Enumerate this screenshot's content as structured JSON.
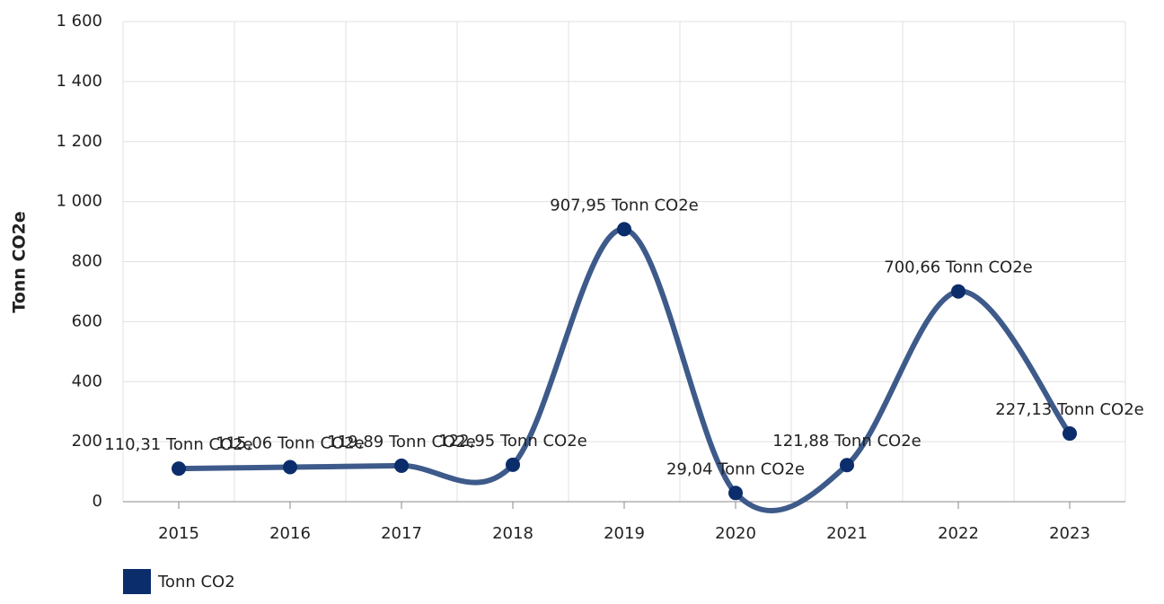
{
  "chart_data": {
    "type": "line",
    "y_label": "Tonn CO2e",
    "categories": [
      "2015",
      "2016",
      "2017",
      "2018",
      "2019",
      "2020",
      "2021",
      "2022",
      "2023"
    ],
    "series": [
      {
        "name": "Tonn CO2",
        "color": "#0b2d6b",
        "line_color": "#3d5a8a",
        "values": [
          110.31,
          115.06,
          119.89,
          122.95,
          907.95,
          29.04,
          121.88,
          700.66,
          227.13
        ],
        "value_labels": [
          "110,31 Tonn CO2e",
          "115,06 Tonn CO2e",
          "119,89 Tonn CO2e",
          "122,95 Tonn CO2e",
          "907,95 Tonn CO2e",
          "29,04 Tonn CO2e",
          "121,88 Tonn CO2e",
          "700,66 Tonn CO2e",
          "227,13 Tonn CO2e"
        ]
      }
    ],
    "ylim": [
      0,
      1600
    ],
    "yticks": [
      0,
      200,
      400,
      600,
      800,
      {
        "value": 1000,
        "label": "1 000"
      },
      {
        "value": 1200,
        "label": "1 200"
      },
      {
        "value": 1400,
        "label": "1 400"
      },
      {
        "value": 1600,
        "label": "1 600"
      }
    ],
    "grid": true,
    "smooth": true,
    "legend": "bottom-left"
  }
}
